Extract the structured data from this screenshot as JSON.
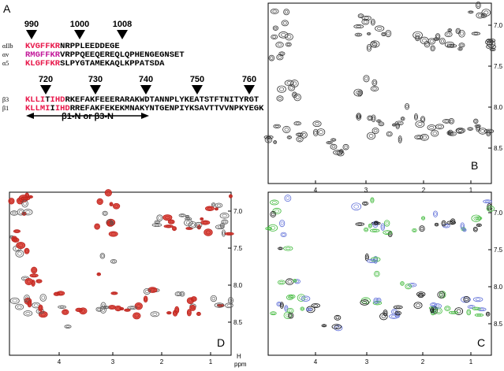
{
  "panel_a": {
    "label": "A",
    "alpha_numbers": [
      "990",
      "1000",
      "1008"
    ],
    "alpha_rows": [
      {
        "label": "αIIb",
        "segments": [
          {
            "text": "KVGFFKR",
            "color": "#e8174a"
          },
          {
            "text": "NRPPLEEDDEGE",
            "color": "#000000"
          }
        ]
      },
      {
        "label": "αv",
        "segments": [
          {
            "text": "RMGFFKR",
            "color": "#c2179a"
          },
          {
            "text": "VRPPQEEQEREQLQPHENGEGNSET",
            "color": "#000000"
          }
        ]
      },
      {
        "label": "α5",
        "segments": [
          {
            "text": "KLGFFKR",
            "color": "#e8174a"
          },
          {
            "text": "SLPYGTAMEKAQLKPPATSDA",
            "color": "#000000"
          }
        ]
      }
    ],
    "beta_numbers": [
      "720",
      "730",
      "740",
      "750",
      "760"
    ],
    "beta_rows": [
      {
        "label": "β3",
        "segments": [
          {
            "text": "KLLI",
            "color": "#e8174a"
          },
          {
            "text": "T",
            "color": "#000000"
          },
          {
            "text": "IHD",
            "color": "#e8174a"
          },
          {
            "text": "RKEFAKFEEERARAKWDTANNPLYKEATSTFTNITYRGT",
            "color": "#000000"
          }
        ]
      },
      {
        "label": "β1",
        "segments": [
          {
            "text": "KLLMI",
            "color": "#e8174a"
          },
          {
            "text": "I",
            "color": "#000000"
          },
          {
            "text": "IHD",
            "color": "#e8174a"
          },
          {
            "text": "RREFAKFEKEKMNAKYNTGENPIYKSAVTTVVNPKYEGK",
            "color": "#000000"
          }
        ]
      }
    ],
    "region_label": "β1-N or β3-N"
  },
  "panel_b": {
    "label": "B",
    "xticks": [
      "4",
      "3",
      "2",
      "1"
    ],
    "yticks": [
      "7.0",
      "7.5",
      "8.0",
      "8.5"
    ]
  },
  "panel_d": {
    "label": "D",
    "xticks": [
      "4",
      "3",
      "2",
      "1"
    ],
    "yticks": [
      "7.0",
      "7.5",
      "8.0",
      "8.5"
    ],
    "axis_unit": "H",
    "axis_label": "ppm"
  },
  "panel_c": {
    "label": "C",
    "xticks": [
      "4",
      "3",
      "2",
      "1"
    ],
    "yticks": [
      "7.0",
      "7.5",
      "8.0",
      "8.5"
    ]
  }
}
